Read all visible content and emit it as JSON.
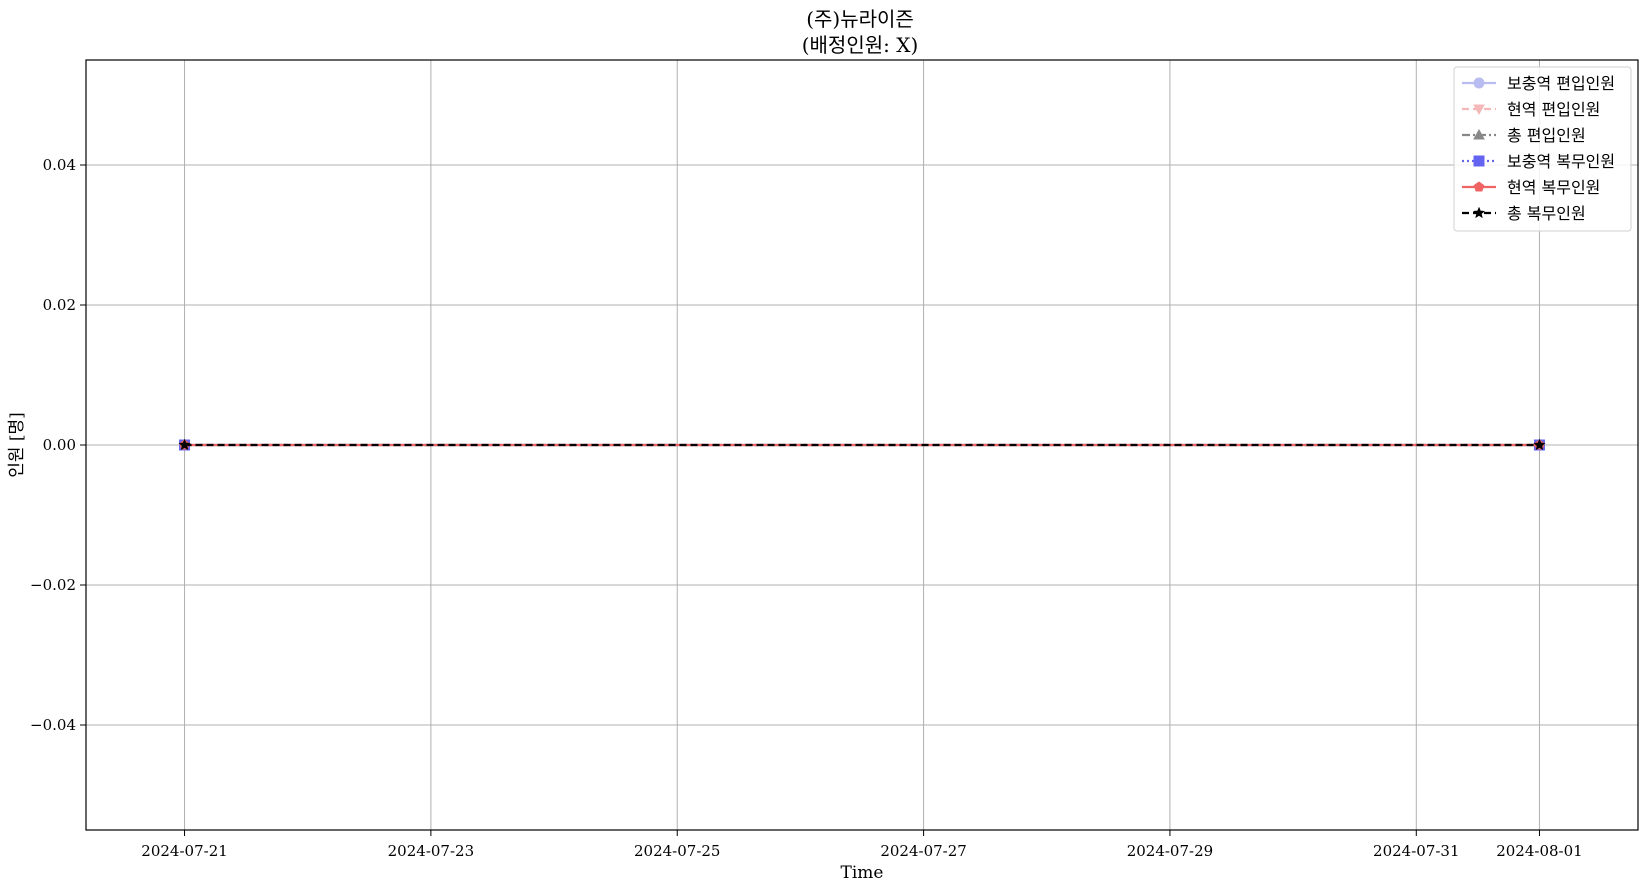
{
  "chart_data": {
    "type": "line",
    "title": "(주)뉴라이즌",
    "subtitle": "(배정인원: X)",
    "xlabel": "Time",
    "ylabel": "인원 [명]",
    "x": [
      "2024-07-21",
      "2024-08-01"
    ],
    "x_ticks": [
      "2024-07-21",
      "2024-07-23",
      "2024-07-25",
      "2024-07-27",
      "2024-07-29",
      "2024-07-31",
      "2024-08-01"
    ],
    "xlim": [
      "2024-07-20 04:48",
      "2024-08-01 19:12"
    ],
    "ylim": [
      -0.055,
      0.055
    ],
    "y_ticks": [
      -0.04,
      -0.02,
      0.0,
      0.02,
      0.04
    ],
    "y_tick_labels": [
      "−0.04",
      "−0.02",
      "0.00",
      "0.02",
      "0.04"
    ],
    "grid": true,
    "legend_position": "top-right",
    "series": [
      {
        "name": "보충역 편입인원",
        "values": [
          0,
          0
        ],
        "color": "#b8bcf0",
        "line": "solid",
        "marker": "circle"
      },
      {
        "name": "현역 편입인원",
        "values": [
          0,
          0
        ],
        "color": "#f4b8b8",
        "line": "dashed",
        "marker": "triangle-down"
      },
      {
        "name": "총 편입인원",
        "values": [
          0,
          0
        ],
        "color": "#888888",
        "line": "dashdot",
        "marker": "triangle-up"
      },
      {
        "name": "보충역 복무인원",
        "values": [
          0,
          0
        ],
        "color": "#6464f0",
        "line": "dotted",
        "marker": "square"
      },
      {
        "name": "현역 복무인원",
        "values": [
          0,
          0
        ],
        "color": "#f06464",
        "line": "solid",
        "marker": "pentagon"
      },
      {
        "name": "총 복무인원",
        "values": [
          0,
          0
        ],
        "color": "#000000",
        "line": "dashed",
        "marker": "star"
      }
    ]
  }
}
